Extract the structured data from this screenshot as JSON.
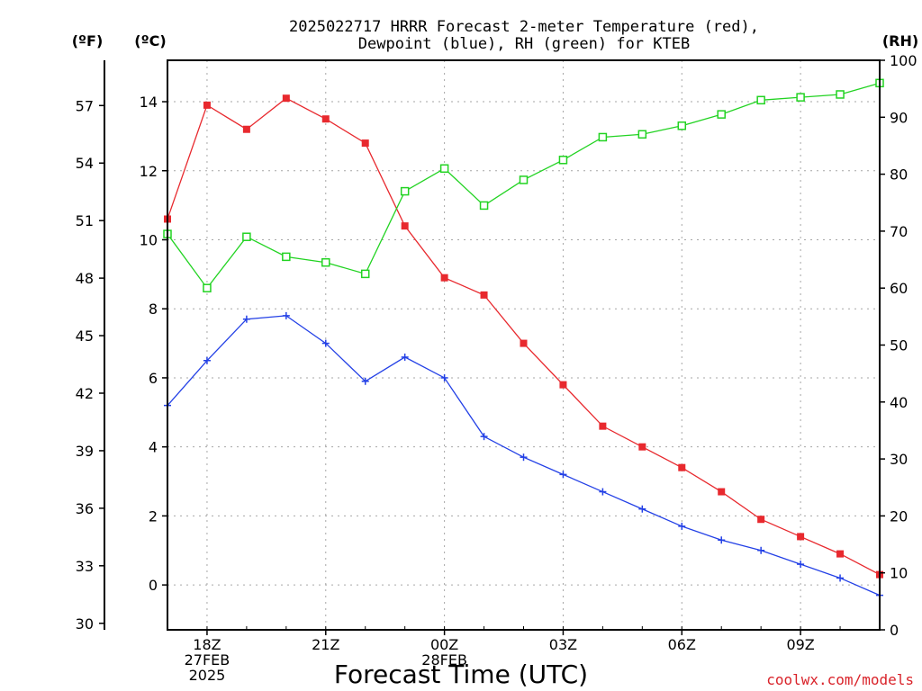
{
  "chart_data": {
    "type": "line",
    "title_line1": "2025022717 HRRR Forecast 2-meter Temperature (red),",
    "title_line2": "Dewpoint (blue), RH (green) for KTEB",
    "xlabel": "Forecast Time (UTC)",
    "credit": "coolwx.com/models",
    "units": {
      "fahrenheit": "(ºF)",
      "celsius": "(ºC)",
      "rh": "(RH)"
    },
    "x_hours": [
      17,
      18,
      19,
      20,
      21,
      22,
      23,
      24,
      25,
      26,
      27,
      28,
      29,
      30,
      31,
      32,
      33,
      34,
      35
    ],
    "x_ticks": [
      {
        "hour": 18,
        "lines": [
          "18Z",
          "27FEB",
          "2025"
        ]
      },
      {
        "hour": 21,
        "lines": [
          "21Z"
        ]
      },
      {
        "hour": 24,
        "lines": [
          "00Z",
          "28FEB"
        ]
      },
      {
        "hour": 27,
        "lines": [
          "03Z"
        ]
      },
      {
        "hour": 30,
        "lines": [
          "06Z"
        ]
      },
      {
        "hour": 33,
        "lines": [
          "09Z"
        ]
      }
    ],
    "xlim": [
      17,
      35
    ],
    "ylim_celsius": [
      -1.3,
      15.2
    ],
    "ylim_rh": [
      0,
      100
    ],
    "celsius_ticks": [
      0,
      2,
      4,
      6,
      8,
      10,
      12,
      14
    ],
    "fahrenheit_ticks": [
      30,
      33,
      36,
      39,
      42,
      45,
      48,
      51,
      54,
      57
    ],
    "rh_ticks": [
      0,
      10,
      20,
      30,
      40,
      50,
      60,
      70,
      80,
      90,
      100
    ],
    "grid": true,
    "series": [
      {
        "name": "Temperature",
        "axis": "celsius",
        "color": "#e8292e",
        "marker": "filled-square",
        "values": [
          10.6,
          13.9,
          13.2,
          14.1,
          13.5,
          12.8,
          10.4,
          8.9,
          8.4,
          7.0,
          5.8,
          4.6,
          4.0,
          3.4,
          2.7,
          1.9,
          1.4,
          0.9,
          0.3
        ]
      },
      {
        "name": "Dewpoint",
        "axis": "celsius",
        "color": "#2340e6",
        "marker": "plus",
        "values": [
          5.2,
          6.5,
          7.7,
          7.8,
          7.0,
          5.9,
          6.6,
          6.0,
          4.3,
          3.7,
          3.2,
          2.7,
          2.2,
          1.7,
          1.3,
          1.0,
          0.6,
          0.2,
          -0.3
        ]
      },
      {
        "name": "RH",
        "axis": "rh",
        "color": "#22d322",
        "marker": "open-square",
        "values": [
          69.5,
          60.0,
          69.0,
          65.5,
          64.5,
          62.5,
          77.0,
          81.0,
          74.5,
          79.0,
          82.5,
          86.5,
          87.0,
          88.5,
          90.5,
          93.0,
          93.5,
          94.0,
          96.0
        ]
      }
    ]
  }
}
